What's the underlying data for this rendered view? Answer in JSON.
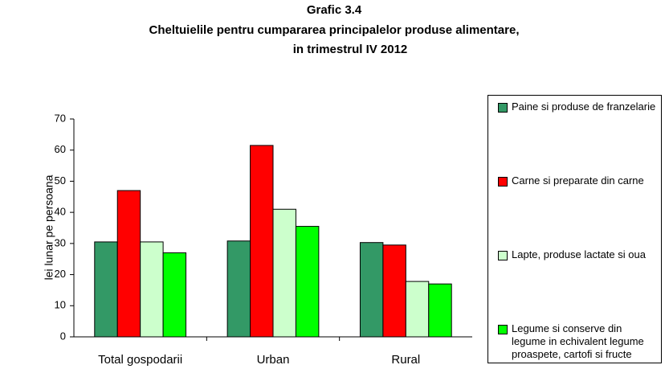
{
  "chart_data": {
    "type": "bar",
    "title": [
      "Grafic 3.4",
      "Cheltuielile pentru cumpararea principalelor produse alimentare,",
      "in trimestrul IV 2012"
    ],
    "y_label": "lei lunar pe persoana",
    "categories": [
      "Total gospodarii",
      "Urban",
      "Rural"
    ],
    "series": [
      {
        "name": "Paine si produse de franzelarie",
        "color": "#339966",
        "values": [
          30.5,
          30.8,
          30.3
        ]
      },
      {
        "name": "Carne si preparate din carne",
        "color": "#ff0000",
        "values": [
          47,
          61.5,
          29.5
        ]
      },
      {
        "name": "Lapte, produse lactate si oua",
        "color": "#ccffcc",
        "values": [
          30.5,
          41,
          17.8
        ]
      },
      {
        "name": "Legume si conserve din legume in echivalent legume proaspete, cartofi si fructe",
        "color": "#00ff00",
        "values": [
          27,
          35.5,
          17
        ]
      }
    ],
    "ylim": [
      0,
      70
    ],
    "yticks": [
      0,
      10,
      20,
      30,
      40,
      50,
      60,
      70
    ],
    "grid": false,
    "legend": "right"
  }
}
